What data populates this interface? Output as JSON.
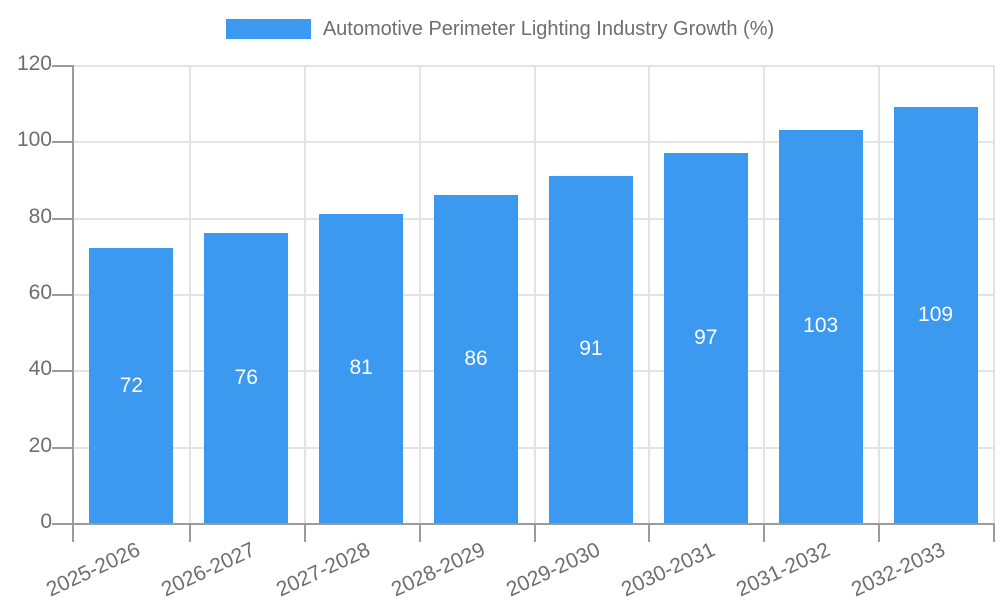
{
  "chart_data": {
    "type": "bar",
    "title": "Automotive Perimeter Lighting Industry Growth (%)",
    "categories": [
      "2025-2026",
      "2026-2027",
      "2027-2028",
      "2028-2029",
      "2029-2030",
      "2030-2031",
      "2031-2032",
      "2032-2033"
    ],
    "values": [
      72,
      76,
      81,
      86,
      91,
      97,
      103,
      109
    ],
    "xlabel": "",
    "ylabel": "",
    "ylim": [
      0,
      120
    ],
    "yticks": [
      0,
      20,
      40,
      60,
      80,
      100,
      120
    ],
    "grid": true,
    "legend_position": "top-center",
    "bar_label_position": "inside-center",
    "x_label_rotation_deg": -25,
    "colors": {
      "bar": "#3b99f0",
      "text": "#6e6e6e",
      "axis": "#9b9b9b",
      "grid": "#e3e3e3",
      "bar_label": "#ffffff"
    }
  }
}
